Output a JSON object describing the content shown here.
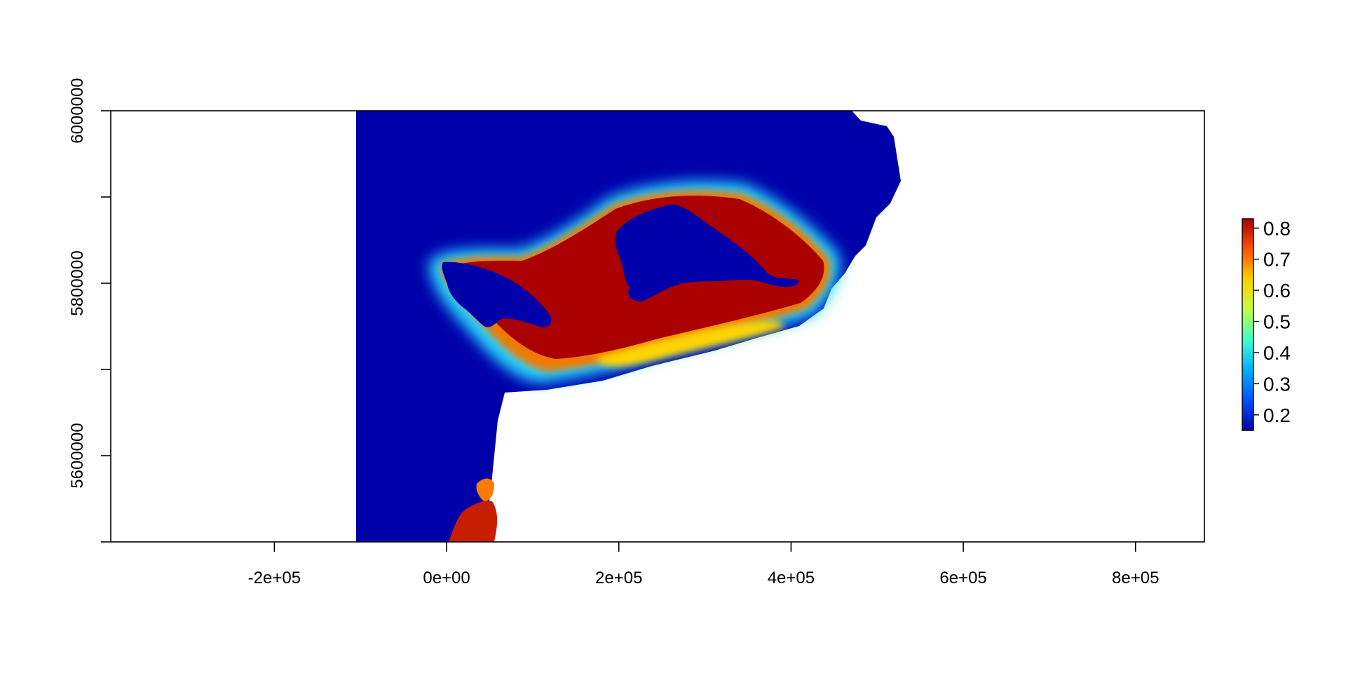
{
  "chart_data": {
    "type": "heatmap",
    "title": "",
    "xlabel": "",
    "ylabel": "",
    "xlim": [
      -390000,
      880000
    ],
    "ylim": [
      5500000,
      6000000
    ],
    "x_ticks": [
      {
        "value": -200000,
        "label": "-2e+05"
      },
      {
        "value": 0,
        "label": "0e+00"
      },
      {
        "value": 200000,
        "label": "2e+05"
      },
      {
        "value": 400000,
        "label": "4e+05"
      },
      {
        "value": 600000,
        "label": "6e+05"
      },
      {
        "value": 800000,
        "label": "8e+05"
      }
    ],
    "y_ticks": [
      {
        "value": 5500000,
        "label": ""
      },
      {
        "value": 5600000,
        "label": "5600000"
      },
      {
        "value": 5700000,
        "label": ""
      },
      {
        "value": 5800000,
        "label": "5800000"
      },
      {
        "value": 5900000,
        "label": ""
      },
      {
        "value": 6000000,
        "label": "6000000"
      }
    ],
    "legend": {
      "placement": "right",
      "min": 0.15,
      "max": 0.83,
      "ticks": [
        {
          "value": 0.2,
          "label": "0.2"
        },
        {
          "value": 0.3,
          "label": "0.3"
        },
        {
          "value": 0.4,
          "label": "0.4"
        },
        {
          "value": 0.5,
          "label": "0.5"
        },
        {
          "value": 0.6,
          "label": "0.6"
        },
        {
          "value": 0.7,
          "label": "0.7"
        },
        {
          "value": 0.8,
          "label": "0.8"
        }
      ],
      "colors": [
        "#0000aa",
        "#0050ff",
        "#00b0ff",
        "#40ffd0",
        "#c0ff40",
        "#ffd000",
        "#ff5000",
        "#aa0000"
      ]
    },
    "colors": {
      "background_low": "#0000aa",
      "high": "#aa0000",
      "mid_orange": "#e85a00",
      "mid_yellow": "#ffd400",
      "mid_cyan": "#28d8ff",
      "mid_blue": "#0060ff"
    }
  }
}
